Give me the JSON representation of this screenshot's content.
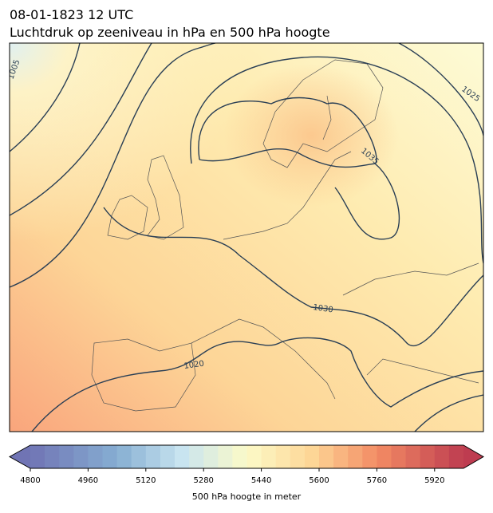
{
  "header": {
    "date": "08-01-1823 12 UTC",
    "title": "Luchtdruk op zeeniveau in hPa en 500 hPa hoogte"
  },
  "contour_labels": [
    "1005",
    "1025",
    "1035",
    "1030",
    "1020"
  ],
  "colorbar": {
    "label": "500 hPa hoogte in meter",
    "lim": [
      4800,
      6000
    ],
    "ticks": [
      4800,
      4960,
      5120,
      5280,
      5440,
      5600,
      5760,
      5920
    ]
  }
}
